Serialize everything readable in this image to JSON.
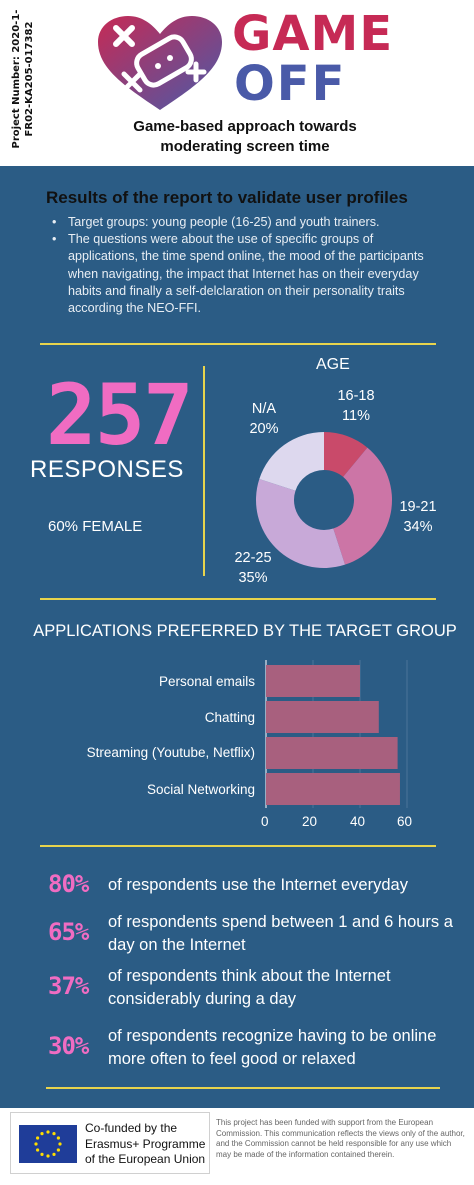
{
  "header": {
    "project_number": "Project Number: 2020-1-FR02-KA205-017382",
    "logo_word1": "GAME",
    "logo_word2": "OFF",
    "subtitle": "Game-based approach towards moderating screen time"
  },
  "results": {
    "title": "Results of the report to validate user profiles",
    "bullets": [
      "Target groups: young people (16-25) and youth trainers.",
      "The questions were about the use of specific groups of applications, the time spend online, the mood of the participants when navigating, the impact that Internet has on their everyday habits and finally a self-delclaration on their personality traits according the NEO-FFI."
    ]
  },
  "responses": {
    "count": "257",
    "label": "RESPONSES",
    "female": "60% FEMALE"
  },
  "age_chart": {
    "title": "AGE",
    "slices": [
      {
        "label": "16-18",
        "pct": "11%",
        "value": 11,
        "color": "#c94a6a"
      },
      {
        "label": "19-21",
        "pct": "34%",
        "value": 34,
        "color": "#cc75a6"
      },
      {
        "label": "22-25",
        "pct": "35%",
        "value": 35,
        "color": "#c8a9d8"
      },
      {
        "label": "N/A",
        "pct": "20%",
        "value": 20,
        "color": "#ddd8ee"
      }
    ]
  },
  "chart_data": {
    "type": "bar",
    "title": "APPLICATIONS PREFERRED BY THE TARGET GROUP",
    "categories": [
      "Personal emails",
      "Chatting",
      "Streaming (Youtube, Netflix)",
      "Social Networking"
    ],
    "values": [
      40,
      48,
      56,
      57
    ],
    "xlim": [
      0,
      60
    ],
    "ticks": [
      "0",
      "20",
      "40",
      "60"
    ],
    "bar_color": "#a8607e",
    "grid": true
  },
  "stats": [
    {
      "pct": "80%",
      "text": "of respondents use the Internet everyday"
    },
    {
      "pct": "65%",
      "text": "of respondents spend between 1 and 6 hours a day on the Internet"
    },
    {
      "pct": "37%",
      "text": "of respondents think about the Internet considerably during a day"
    },
    {
      "pct": "30%",
      "text": "of respondents recognize having to be online more often to feel good or relaxed"
    }
  ],
  "footer": {
    "eu_text": "Co-funded by the Erasmus+ Programme of the European Union",
    "disclaimer": "This project has been funded with support from the European Commission. This communication reflects the views only of the author, and the Commission cannot be held responsible for any use which may be made of the information contained therein."
  },
  "colors": {
    "background": "#2b5c85",
    "accent_pink": "#f06cc2",
    "rule_yellow": "#e8d44d",
    "logo_red": "#c62a55",
    "logo_blue": "#4a5aa8"
  }
}
